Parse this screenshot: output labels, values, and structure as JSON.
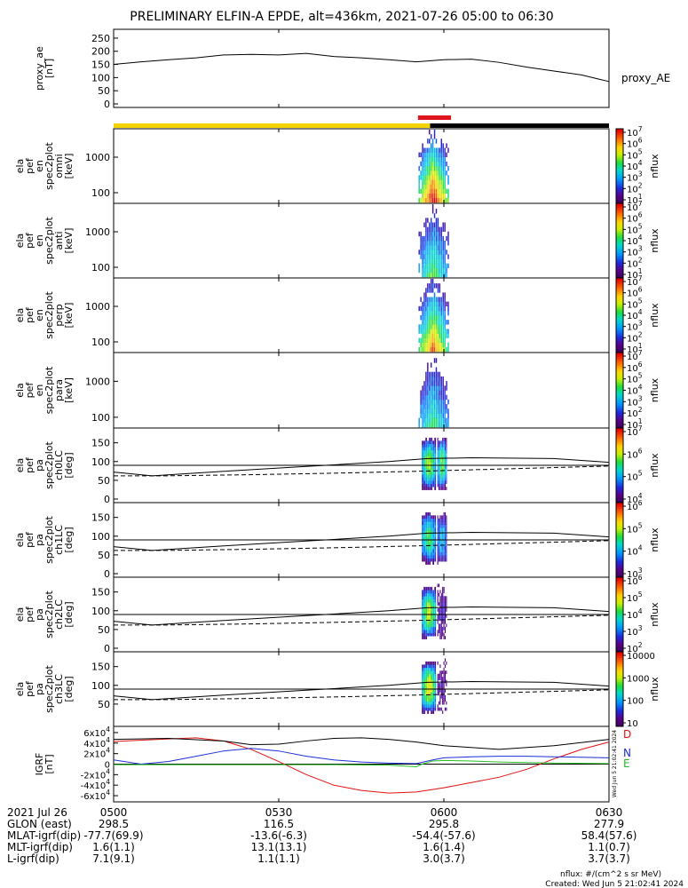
{
  "title": "PRELIMINARY ELFIN-A EPDE, alt=436km, 2021-07-26 05:00 to 06:30",
  "colors": {
    "sunlit_bar": "#f2d200",
    "shadow_bar": "#000000",
    "science_zone_bar": "#e0141c",
    "igrf_d": "#e01010",
    "igrf_n": "#1a2fd6",
    "igrf_e": "#22c022"
  },
  "chart_data": [
    {
      "type": "line",
      "panel": "proxy_ae",
      "ylabel": [
        "proxy_ae",
        "[nT]"
      ],
      "ylim": [
        0,
        270
      ],
      "yticks": [
        "0",
        "50",
        "100",
        "150",
        "200",
        "250"
      ],
      "legend": "proxy_AE",
      "x_minutes": [
        0,
        5,
        10,
        15,
        20,
        25,
        30,
        35,
        40,
        45,
        50,
        55,
        60,
        65,
        70,
        75,
        80,
        85,
        88,
        90
      ],
      "values": [
        150,
        160,
        168,
        175,
        186,
        188,
        186,
        192,
        180,
        175,
        168,
        160,
        168,
        170,
        158,
        140,
        125,
        110,
        95,
        85
      ]
    },
    {
      "type": "heatmap",
      "panel": "omni",
      "ylabel": [
        "ela",
        "pef",
        "en",
        "spec2plot",
        "omni",
        "[keV]"
      ],
      "yticks": [
        "100",
        "1000"
      ],
      "colorbar": {
        "label": "nflux",
        "ticks": [
          "10^1",
          "10^2",
          "10^3",
          "10^4",
          "10^5",
          "10^6",
          "10^7"
        ]
      }
    },
    {
      "type": "heatmap",
      "panel": "anti",
      "ylabel": [
        "ela",
        "pef",
        "en",
        "spec2plot",
        "anti",
        "[keV]"
      ],
      "yticks": [
        "100",
        "1000"
      ],
      "colorbar": {
        "label": "nflux",
        "ticks": [
          "10^1",
          "10^2",
          "10^3",
          "10^4",
          "10^5",
          "10^6",
          "10^7"
        ]
      }
    },
    {
      "type": "heatmap",
      "panel": "perp",
      "ylabel": [
        "ela",
        "pef",
        "en",
        "spec2plot",
        "perp",
        "[keV]"
      ],
      "yticks": [
        "100",
        "1000"
      ],
      "colorbar": {
        "label": "nflux",
        "ticks": [
          "10^1",
          "10^2",
          "10^3",
          "10^4",
          "10^5",
          "10^6",
          "10^7"
        ]
      }
    },
    {
      "type": "heatmap",
      "panel": "para",
      "ylabel": [
        "ela",
        "pef",
        "en",
        "spec2plot",
        "para",
        "[keV]"
      ],
      "yticks": [
        "100",
        "1000"
      ],
      "colorbar": {
        "label": "nflux",
        "ticks": [
          "10^1",
          "10^2",
          "10^3",
          "10^4",
          "10^5",
          "10^6",
          "10^7"
        ]
      }
    },
    {
      "type": "heatmap",
      "panel": "ch0LC",
      "ylabel": [
        "ela",
        "pef",
        "pa",
        "spec2plot",
        "ch0LC",
        "[deg]"
      ],
      "ylim": [
        0,
        180
      ],
      "yticks": [
        "0",
        "50",
        "100",
        "150"
      ],
      "colorbar": {
        "label": "nflux",
        "ticks": [
          "10^4",
          "10^5",
          "10^6",
          "10^7"
        ]
      }
    },
    {
      "type": "heatmap",
      "panel": "ch1LC",
      "ylabel": [
        "ela",
        "pef",
        "pa",
        "spec2plot",
        "ch1LC",
        "[deg]"
      ],
      "ylim": [
        0,
        180
      ],
      "yticks": [
        "0",
        "50",
        "100",
        "150"
      ],
      "colorbar": {
        "label": "nflux",
        "ticks": [
          "10^3",
          "10^4",
          "10^5",
          "10^6"
        ]
      }
    },
    {
      "type": "heatmap",
      "panel": "ch2LC",
      "ylabel": [
        "ela",
        "pef",
        "pa",
        "spec2plot",
        "ch2LC",
        "[deg]"
      ],
      "ylim": [
        0,
        180
      ],
      "yticks": [
        "0",
        "50",
        "100",
        "150"
      ],
      "colorbar": {
        "label": "nflux",
        "ticks": [
          "10^2",
          "10^3",
          "10^4",
          "10^5",
          "10^6"
        ]
      }
    },
    {
      "type": "heatmap",
      "panel": "ch3LC",
      "ylabel": [
        "ela",
        "pef",
        "pa",
        "spec2plot",
        "ch3LC",
        "[deg]"
      ],
      "ylim": [
        0,
        180
      ],
      "yticks": [
        "50",
        "100",
        "150"
      ],
      "colorbar": {
        "label": "nflux",
        "ticks": [
          "10",
          "100",
          "1000",
          "10000"
        ]
      }
    },
    {
      "type": "line",
      "panel": "IGRF",
      "ylabel": [
        "IGRF",
        "[nT]"
      ],
      "ylim": [
        -65000,
        65000
      ],
      "yticks": [
        "-6x10^4",
        "-4x10^4",
        "-2x10^4",
        "0",
        "2x10^4",
        "4x10^4",
        "6x10^4"
      ],
      "series": [
        {
          "name": "D",
          "x_minutes": [
            0,
            10,
            15,
            20,
            25,
            30,
            35,
            40,
            45,
            50,
            55,
            60,
            65,
            70,
            75,
            80,
            85,
            90
          ],
          "values": [
            43000,
            48000,
            50000,
            44000,
            28000,
            5000,
            -20000,
            -40000,
            -50000,
            -55000,
            -53000,
            -45000,
            -35000,
            -25000,
            -10000,
            10000,
            28000,
            42000
          ]
        },
        {
          "name": "N",
          "x_minutes": [
            0,
            5,
            10,
            15,
            20,
            25,
            30,
            35,
            40,
            45,
            50,
            55,
            58,
            60,
            65,
            70,
            75,
            80,
            85,
            90
          ],
          "values": [
            8000,
            0,
            5000,
            15000,
            25000,
            30000,
            25000,
            15000,
            8000,
            4000,
            2000,
            1000,
            8000,
            12000,
            14000,
            15000,
            15000,
            14000,
            13000,
            12000
          ]
        },
        {
          "name": "E",
          "x_minutes": [
            0,
            10,
            20,
            30,
            40,
            50,
            55,
            56,
            58,
            60,
            65,
            70,
            80,
            90
          ],
          "values": [
            -1000,
            -1000,
            -1000,
            -1000,
            -1000,
            -2000,
            -5000,
            0,
            6000,
            7000,
            6000,
            4000,
            2000,
            1000
          ]
        },
        {
          "name": "black",
          "x_minutes": [
            0,
            10,
            20,
            25,
            30,
            35,
            40,
            45,
            50,
            55,
            60,
            70,
            80,
            90
          ],
          "values": [
            47000,
            49000,
            44000,
            37000,
            38000,
            44000,
            49000,
            50000,
            47000,
            42000,
            35000,
            28000,
            35000,
            47000
          ]
        }
      ]
    }
  ],
  "x_axis": {
    "row_labels": [
      "2021 Jul 26",
      "GLON (east)",
      "MLAT-igrf(dip)",
      "MLT-igrf(dip)",
      "L-igrf(dip)"
    ],
    "ticks": [
      {
        "label": "0500",
        "values": [
          "298.5",
          "-77.7(69.9)",
          "1.6(1.1)",
          "7.1(9.1)"
        ]
      },
      {
        "label": "0530",
        "values": [
          "116.5",
          "-13.6(-6.3)",
          "13.1(13.1)",
          "1.1(1.1)"
        ]
      },
      {
        "label": "0600",
        "values": [
          "295.8",
          "-54.4(-57.6)",
          "1.6(1.4)",
          "3.0(3.7)"
        ]
      },
      {
        "label": "0630",
        "values": [
          "277.9",
          "58.4(57.6)",
          "1.1(0.7)",
          "3.7(3.7)"
        ]
      }
    ]
  },
  "footer": {
    "units": "nflux: #/(cm^2 s sr MeV)",
    "created": "Created: Wed Jun  5 21:02:41 2024",
    "side_stamp": "Wed Jun  5 21:02:41 2024"
  },
  "icons": [
    "igrf-legend-d",
    "igrf-legend-n",
    "igrf-legend-e"
  ]
}
